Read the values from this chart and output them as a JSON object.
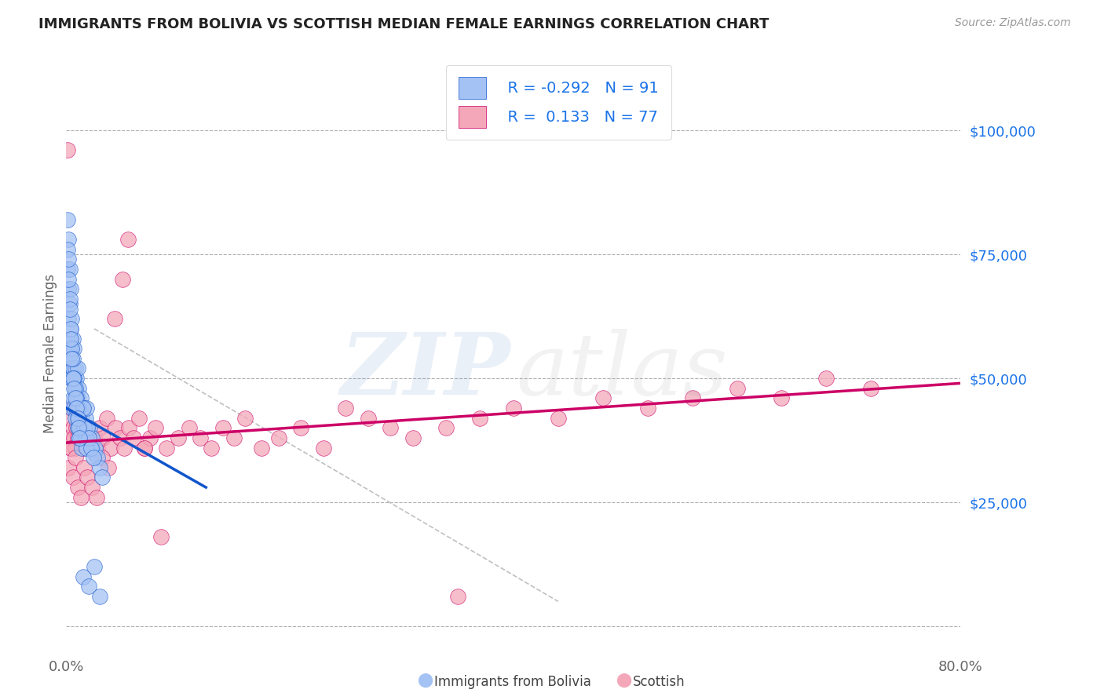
{
  "title": "IMMIGRANTS FROM BOLIVIA VS SCOTTISH MEDIAN FEMALE EARNINGS CORRELATION CHART",
  "source_text": "Source: ZipAtlas.com",
  "ylabel": "Median Female Earnings",
  "xlim": [
    0.0,
    0.8
  ],
  "ylim": [
    -5000,
    115000
  ],
  "yticks": [
    0,
    25000,
    50000,
    75000,
    100000
  ],
  "ytick_labels": [
    "",
    "$25,000",
    "$50,000",
    "$75,000",
    "$100,000"
  ],
  "blue_color": "#a4c2f4",
  "pink_color": "#f4a7b9",
  "blue_line_color": "#1155cc",
  "pink_line_color": "#cc0066",
  "grid_color": "#b0b0b0",
  "background_color": "#ffffff",
  "title_color": "#222222",
  "axis_label_color": "#666666",
  "ytick_color": "#1a73e8",
  "xtick_color": "#666666",
  "blue_scatter_x": [
    0.001,
    0.001,
    0.002,
    0.002,
    0.002,
    0.003,
    0.003,
    0.003,
    0.003,
    0.004,
    0.004,
    0.004,
    0.004,
    0.005,
    0.005,
    0.005,
    0.005,
    0.006,
    0.006,
    0.006,
    0.007,
    0.007,
    0.007,
    0.008,
    0.008,
    0.008,
    0.009,
    0.009,
    0.01,
    0.01,
    0.01,
    0.011,
    0.011,
    0.012,
    0.012,
    0.013,
    0.013,
    0.014,
    0.015,
    0.015,
    0.016,
    0.017,
    0.018,
    0.018,
    0.019,
    0.02,
    0.021,
    0.022,
    0.023,
    0.025,
    0.026,
    0.028,
    0.03,
    0.032,
    0.001,
    0.002,
    0.003,
    0.004,
    0.005,
    0.006,
    0.007,
    0.008,
    0.009,
    0.01,
    0.011,
    0.012,
    0.013,
    0.014,
    0.015,
    0.016,
    0.017,
    0.018,
    0.019,
    0.02,
    0.022,
    0.024,
    0.002,
    0.003,
    0.004,
    0.005,
    0.006,
    0.007,
    0.008,
    0.009,
    0.01,
    0.011,
    0.012,
    0.015,
    0.02,
    0.025,
    0.03
  ],
  "blue_scatter_y": [
    82000,
    72000,
    78000,
    68000,
    62000,
    72000,
    65000,
    58000,
    52000,
    68000,
    60000,
    55000,
    50000,
    62000,
    56000,
    50000,
    44000,
    58000,
    52000,
    46000,
    56000,
    50000,
    44000,
    52000,
    48000,
    42000,
    50000,
    44000,
    52000,
    46000,
    40000,
    48000,
    42000,
    44000,
    38000,
    46000,
    40000,
    42000,
    44000,
    38000,
    40000,
    42000,
    38000,
    44000,
    40000,
    38000,
    40000,
    36000,
    38000,
    35000,
    36000,
    34000,
    32000,
    30000,
    76000,
    70000,
    66000,
    60000,
    56000,
    54000,
    50000,
    48000,
    46000,
    44000,
    42000,
    40000,
    38000,
    36000,
    44000,
    40000,
    38000,
    36000,
    40000,
    38000,
    36000,
    34000,
    74000,
    64000,
    58000,
    54000,
    50000,
    48000,
    46000,
    44000,
    42000,
    40000,
    38000,
    10000,
    8000,
    12000,
    6000
  ],
  "pink_scatter_x": [
    0.001,
    0.002,
    0.003,
    0.004,
    0.005,
    0.006,
    0.007,
    0.008,
    0.009,
    0.01,
    0.012,
    0.014,
    0.016,
    0.018,
    0.02,
    0.022,
    0.025,
    0.028,
    0.03,
    0.033,
    0.036,
    0.04,
    0.044,
    0.048,
    0.052,
    0.056,
    0.06,
    0.065,
    0.07,
    0.075,
    0.08,
    0.09,
    0.1,
    0.11,
    0.12,
    0.13,
    0.14,
    0.15,
    0.16,
    0.175,
    0.19,
    0.21,
    0.23,
    0.25,
    0.27,
    0.29,
    0.31,
    0.34,
    0.37,
    0.4,
    0.44,
    0.48,
    0.52,
    0.56,
    0.6,
    0.64,
    0.68,
    0.72,
    0.002,
    0.004,
    0.006,
    0.008,
    0.01,
    0.013,
    0.016,
    0.019,
    0.023,
    0.027,
    0.032,
    0.038,
    0.043,
    0.05,
    0.055,
    0.07,
    0.085,
    0.35
  ],
  "pink_scatter_y": [
    96000,
    38000,
    42000,
    36000,
    44000,
    40000,
    38000,
    36000,
    40000,
    38000,
    42000,
    40000,
    36000,
    38000,
    40000,
    36000,
    38000,
    36000,
    40000,
    38000,
    42000,
    36000,
    40000,
    38000,
    36000,
    40000,
    38000,
    42000,
    36000,
    38000,
    40000,
    36000,
    38000,
    40000,
    38000,
    36000,
    40000,
    38000,
    42000,
    36000,
    38000,
    40000,
    36000,
    44000,
    42000,
    40000,
    38000,
    40000,
    42000,
    44000,
    42000,
    46000,
    44000,
    46000,
    48000,
    46000,
    50000,
    48000,
    32000,
    36000,
    30000,
    34000,
    28000,
    26000,
    32000,
    30000,
    28000,
    26000,
    34000,
    32000,
    62000,
    70000,
    78000,
    36000,
    18000,
    6000
  ],
  "blue_trend_x": [
    0.0,
    0.125
  ],
  "blue_trend_y": [
    44000,
    28000
  ],
  "pink_trend_x": [
    0.0,
    0.8
  ],
  "pink_trend_y": [
    37000,
    49000
  ],
  "ref_line_x": [
    0.025,
    0.44
  ],
  "ref_line_y": [
    60000,
    5000
  ]
}
